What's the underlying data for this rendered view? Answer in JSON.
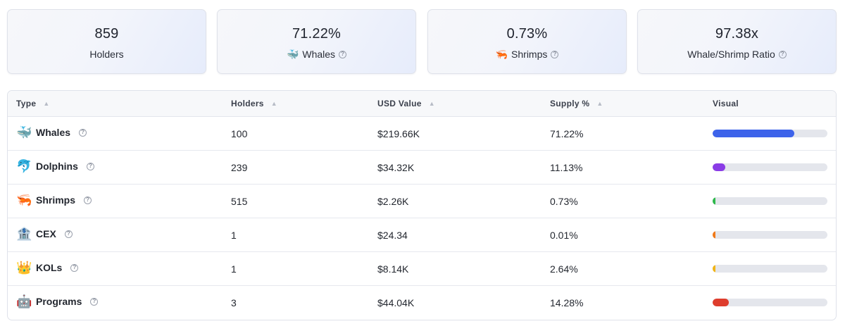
{
  "summary": [
    {
      "value": "859",
      "label": "Holders",
      "emoji": "",
      "icon": "",
      "help": false
    },
    {
      "value": "71.22%",
      "label": "Whales",
      "emoji": "🐳",
      "icon": "whale-icon",
      "help": true
    },
    {
      "value": "0.73%",
      "label": "Shrimps",
      "emoji": "🦐",
      "icon": "shrimp-icon",
      "help": true
    },
    {
      "value": "97.38x",
      "label": "Whale/Shrimp Ratio",
      "emoji": "",
      "icon": "",
      "help": true
    }
  ],
  "table": {
    "headers": {
      "type": "Type",
      "holders": "Holders",
      "usd_value": "USD Value",
      "supply": "Supply %",
      "visual": "Visual"
    },
    "rows": [
      {
        "type": "Whales",
        "emoji": "🐳",
        "icon": "whale-icon",
        "holders": "100",
        "usd_value": "$219.66K",
        "supply": "71.22%",
        "fraction": 0.7122,
        "color": "#3d63ea"
      },
      {
        "type": "Dolphins",
        "emoji": "🐬",
        "icon": "dolphin-icon",
        "holders": "239",
        "usd_value": "$34.32K",
        "supply": "11.13%",
        "fraction": 0.1113,
        "color": "#8a3ce6"
      },
      {
        "type": "Shrimps",
        "emoji": "🦐",
        "icon": "shrimp-icon",
        "holders": "515",
        "usd_value": "$2.26K",
        "supply": "0.73%",
        "fraction": 0.0073,
        "color": "#2eb84c"
      },
      {
        "type": "CEX",
        "emoji": "🏦",
        "icon": "bank-icon",
        "holders": "1",
        "usd_value": "$24.34",
        "supply": "0.01%",
        "fraction": 0.0001,
        "color": "#f07a1a"
      },
      {
        "type": "KOLs",
        "emoji": "👑",
        "icon": "crown-icon",
        "holders": "1",
        "usd_value": "$8.14K",
        "supply": "2.64%",
        "fraction": 0.0264,
        "color": "#f0b417"
      },
      {
        "type": "Programs",
        "emoji": "🤖",
        "icon": "robot-icon",
        "holders": "3",
        "usd_value": "$44.04K",
        "supply": "14.28%",
        "fraction": 0.1428,
        "color": "#de3d2d"
      }
    ]
  }
}
